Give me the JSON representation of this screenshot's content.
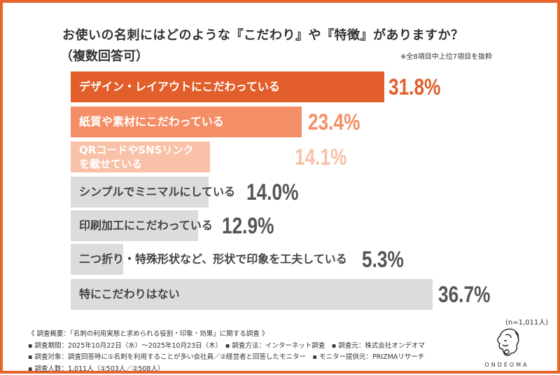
{
  "title": "お使いの名刺にはどのような『こだわり』や『特徴』がありますか？",
  "subtitle": "（複数回答可）",
  "note": "※全8項目中上位7項目を抜粋",
  "sample": "(n=1,011人)",
  "colors": {
    "frame": "#e8642e",
    "bar1": "#e25f2c",
    "bar2": "#f48e66",
    "bar3": "#f9c1a8",
    "gray": "#dcdcdc",
    "grayText": "#555555"
  },
  "chart_data": {
    "type": "bar",
    "orientation": "horizontal",
    "title": "お使いの名刺にはどのような『こだわり』や『特徴』がありますか？",
    "categories": [
      "デザイン・レイアウトにこだわっている",
      "紙質や素材にこだわっている",
      "QRコードやSNSリンクを載せている",
      "シンプルでミニマルにしている",
      "印刷加工にこだわっている",
      "二つ折り・特殊形状など、形状で印象を工夫している",
      "特にこだわりはない"
    ],
    "labels": [
      "デザイン・レイアウトにこだわっている",
      "紙質や素材にこだわっている",
      "QRコードやSNSリンク\nを載せている",
      "シンプルでミニマルにしている",
      "印刷加工にこだわっている",
      "二つ折り・特殊形状など、形状で印象を工夫している",
      "特にこだわりはない"
    ],
    "values": [
      31.8,
      23.4,
      14.1,
      14.0,
      12.9,
      5.3,
      36.7
    ],
    "value_labels": [
      "31.8%",
      "23.4%",
      "14.1%",
      "14.0%",
      "12.9%",
      "5.3%",
      "36.7%"
    ],
    "unit": "%",
    "grid": false
  },
  "footer": {
    "lines": [
      "《 調査概要：「名刺の利用実態と求められる役割・印象・効果」に関する調査 》",
      "▪ 調査期間：2025年10月22日（水）～2025年10月23日（木）　▪ 調査方法：インターネット調査　▪ 調査元：株式会社オンデオマ",
      "▪ 調査対象：調査回答時に①名刺を利用することが多い会社員／②経営者と回答したモニター　▪ モニター提供元：PRIZMAリサーチ",
      "▪ 調査人数：1,011人（①503人／②508人）"
    ]
  },
  "logo": {
    "text": "ONDEOMA",
    "icon": "lion-head-icon"
  }
}
